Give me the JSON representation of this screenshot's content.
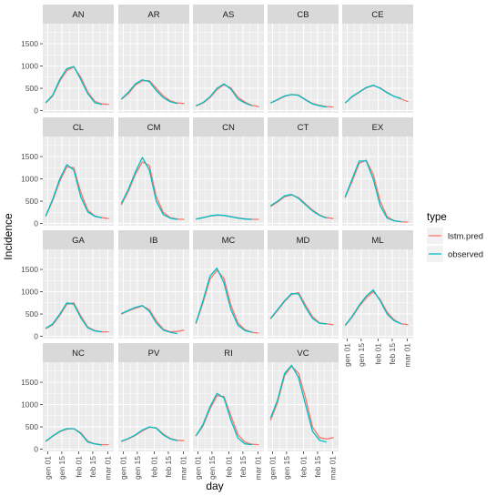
{
  "chart_data": {
    "type": "line",
    "facet_layout": "5 columns, 4 rows, shared axes",
    "xlabel": "day",
    "ylabel": "Incidence",
    "x_ticks": [
      "gen 01",
      "gen 15",
      "feb 01",
      "feb 15",
      "mar 01"
    ],
    "x_range": [
      "2019-12-27",
      "2020-03-07"
    ],
    "y_ticks": [
      0,
      500,
      1000,
      1500
    ],
    "ylim": [
      -50,
      1950
    ],
    "grid": true,
    "legend": {
      "title": "type",
      "position": "right",
      "entries": [
        {
          "key": "lstm",
          "label": "lstm.pred",
          "color": "#F8766D"
        },
        {
          "key": "obs",
          "label": "observed",
          "color": "#00BFC4"
        }
      ]
    },
    "x": [
      "2019-12-30",
      "2020-01-06",
      "2020-01-13",
      "2020-01-20",
      "2020-01-27",
      "2020-02-03",
      "2020-02-10",
      "2020-02-17",
      "2020-02-24",
      "2020-03-02"
    ],
    "panels": [
      {
        "name": "AN",
        "obs": [
          180,
          350,
          700,
          940,
          990,
          700,
          380,
          180,
          140,
          null
        ],
        "lstm": [
          170,
          330,
          660,
          900,
          980,
          750,
          420,
          210,
          150,
          140
        ]
      },
      {
        "name": "AR",
        "obs": [
          260,
          410,
          600,
          690,
          650,
          450,
          290,
          200,
          160,
          null
        ],
        "lstm": [
          250,
          380,
          570,
          670,
          670,
          500,
          330,
          220,
          170,
          160
        ]
      },
      {
        "name": "AS",
        "obs": [
          110,
          180,
          310,
          500,
          600,
          480,
          260,
          170,
          110,
          null
        ],
        "lstm": [
          100,
          170,
          290,
          470,
          580,
          510,
          300,
          190,
          120,
          90
        ]
      },
      {
        "name": "CB",
        "obs": [
          170,
          250,
          330,
          360,
          340,
          240,
          150,
          110,
          80,
          null
        ],
        "lstm": [
          170,
          240,
          320,
          360,
          350,
          250,
          160,
          120,
          90,
          80
        ]
      },
      {
        "name": "CE",
        "obs": [
          170,
          320,
          420,
          520,
          570,
          500,
          400,
          320,
          270,
          null
        ],
        "lstm": [
          170,
          310,
          410,
          510,
          560,
          510,
          410,
          320,
          260,
          200
        ]
      },
      {
        "name": "CL",
        "obs": [
          170,
          550,
          1000,
          1320,
          1200,
          600,
          260,
          160,
          130,
          null
        ],
        "lstm": [
          160,
          520,
          950,
          1270,
          1250,
          700,
          300,
          170,
          130,
          110
        ]
      },
      {
        "name": "CM",
        "obs": [
          450,
          760,
          1150,
          1480,
          1200,
          500,
          200,
          120,
          90,
          null
        ],
        "lstm": [
          420,
          720,
          1100,
          1380,
          1300,
          600,
          250,
          130,
          100,
          90
        ]
      },
      {
        "name": "CN",
        "obs": [
          100,
          130,
          170,
          190,
          180,
          150,
          120,
          100,
          90,
          null
        ],
        "lstm": [
          100,
          130,
          165,
          185,
          180,
          155,
          125,
          105,
          95,
          90
        ]
      },
      {
        "name": "CT",
        "obs": [
          400,
          500,
          620,
          650,
          560,
          420,
          280,
          180,
          120,
          null
        ],
        "lstm": [
          380,
          480,
          600,
          640,
          580,
          440,
          300,
          190,
          130,
          110
        ]
      },
      {
        "name": "EX",
        "obs": [
          600,
          1000,
          1400,
          1400,
          1000,
          400,
          120,
          60,
          40,
          null
        ],
        "lstm": [
          580,
          950,
          1350,
          1420,
          1100,
          500,
          150,
          60,
          40,
          30
        ]
      },
      {
        "name": "GA",
        "obs": [
          180,
          280,
          500,
          750,
          720,
          420,
          190,
          120,
          100,
          null
        ],
        "lstm": [
          170,
          260,
          470,
          720,
          750,
          460,
          210,
          130,
          100,
          100
        ]
      },
      {
        "name": "IB",
        "obs": [
          510,
          580,
          650,
          690,
          560,
          300,
          140,
          90,
          60,
          null
        ],
        "lstm": [
          500,
          570,
          630,
          680,
          600,
          350,
          160,
          100,
          110,
          140
        ]
      },
      {
        "name": "MC",
        "obs": [
          300,
          800,
          1350,
          1530,
          1200,
          600,
          250,
          130,
          90,
          null
        ],
        "lstm": [
          280,
          750,
          1280,
          1480,
          1300,
          700,
          300,
          150,
          90,
          70
        ]
      },
      {
        "name": "MD",
        "obs": [
          400,
          600,
          800,
          960,
          950,
          650,
          400,
          290,
          280,
          null
        ],
        "lstm": [
          390,
          580,
          780,
          940,
          980,
          700,
          440,
          300,
          280,
          260
        ]
      },
      {
        "name": "ML",
        "obs": [
          250,
          450,
          700,
          900,
          1040,
          800,
          500,
          350,
          280,
          null
        ],
        "lstm": [
          240,
          430,
          670,
          860,
          1000,
          830,
          540,
          370,
          280,
          260
        ]
      },
      {
        "name": "NC",
        "obs": [
          180,
          300,
          400,
          460,
          460,
          350,
          160,
          120,
          90,
          null
        ],
        "lstm": [
          170,
          290,
          390,
          450,
          460,
          370,
          180,
          120,
          100,
          100
        ]
      },
      {
        "name": "PV",
        "obs": [
          180,
          240,
          320,
          430,
          500,
          470,
          320,
          230,
          190,
          null
        ],
        "lstm": [
          170,
          230,
          310,
          410,
          490,
          480,
          340,
          240,
          200,
          190
        ]
      },
      {
        "name": "RI",
        "obs": [
          300,
          550,
          950,
          1250,
          1150,
          650,
          250,
          120,
          100,
          null
        ],
        "lstm": [
          290,
          520,
          900,
          1200,
          1180,
          750,
          330,
          160,
          110,
          100
        ]
      },
      {
        "name": "VC",
        "obs": [
          700,
          1100,
          1700,
          1880,
          1600,
          1000,
          400,
          200,
          160,
          null
        ],
        "lstm": [
          650,
          1050,
          1650,
          1860,
          1700,
          1150,
          500,
          260,
          230,
          260
        ]
      }
    ]
  }
}
